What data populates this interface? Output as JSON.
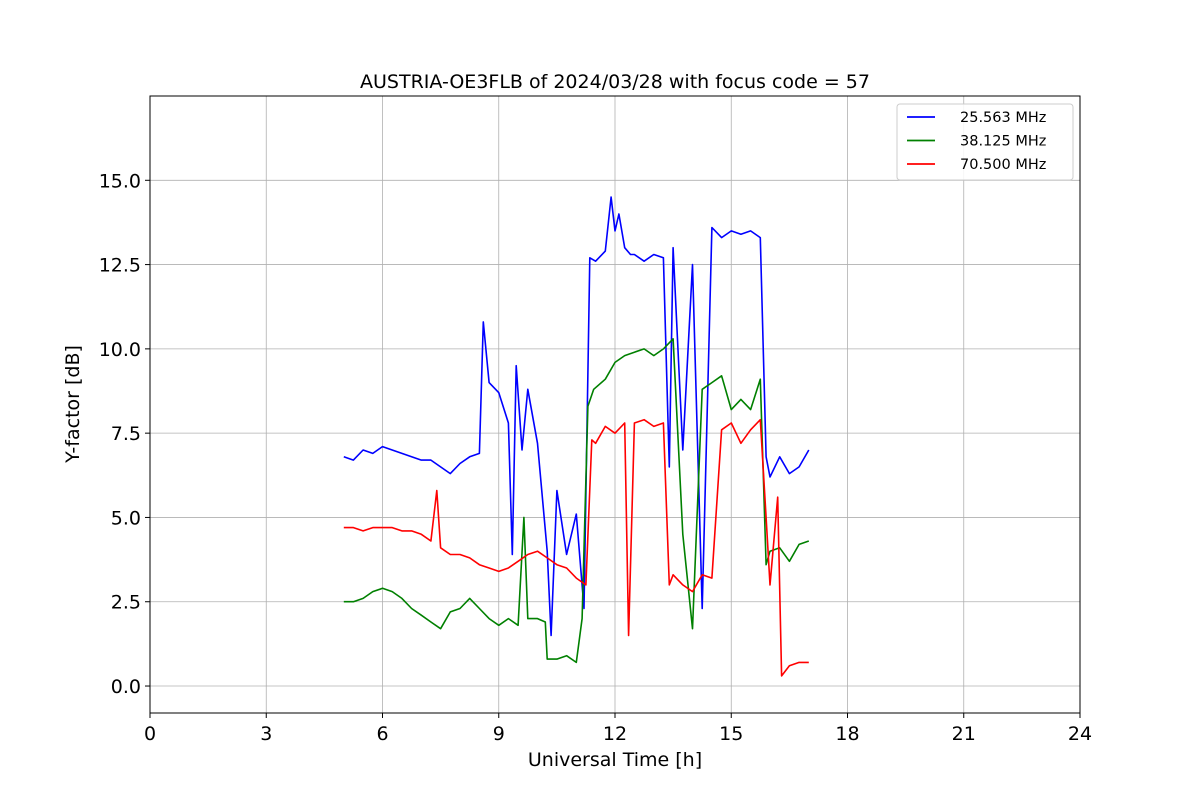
{
  "chart_data": {
    "type": "line",
    "title": "AUSTRIA-OE3FLB of 2024/03/28 with focus code = 57",
    "xlabel": "Universal Time [h]",
    "ylabel": "Y-factor [dB]",
    "xlim": [
      0,
      24
    ],
    "ylim": [
      -0.8,
      17.5
    ],
    "xticks": [
      0,
      3,
      6,
      9,
      12,
      15,
      18,
      21,
      24
    ],
    "xtick_labels": [
      "0",
      "3",
      "6",
      "9",
      "12",
      "15",
      "18",
      "21",
      "24"
    ],
    "yticks": [
      0.0,
      2.5,
      5.0,
      7.5,
      10.0,
      12.5,
      15.0
    ],
    "ytick_labels": [
      "0.0",
      "2.5",
      "5.0",
      "7.5",
      "10.0",
      "12.5",
      "15.0"
    ],
    "grid": true,
    "legend_position": "top-right",
    "colors": {
      "25.563 MHz": "#0000ff",
      "38.125 MHz": "#008000",
      "70.500 MHz": "#ff0000"
    },
    "series": [
      {
        "name": "25.563 MHz",
        "color": "#0000ff",
        "x": [
          5.0,
          5.25,
          5.5,
          5.75,
          6.0,
          6.25,
          6.5,
          6.75,
          7.0,
          7.25,
          7.5,
          7.75,
          8.0,
          8.25,
          8.5,
          8.6,
          8.75,
          9.0,
          9.25,
          9.35,
          9.45,
          9.6,
          9.75,
          10.0,
          10.25,
          10.35,
          10.5,
          10.75,
          11.0,
          11.2,
          11.35,
          11.5,
          11.75,
          11.9,
          12.0,
          12.1,
          12.25,
          12.4,
          12.5,
          12.75,
          13.0,
          13.25,
          13.4,
          13.5,
          13.75,
          14.0,
          14.25,
          14.5,
          14.75,
          15.0,
          15.25,
          15.5,
          15.75,
          15.9,
          16.0,
          16.25,
          16.5,
          16.75,
          17.0
        ],
        "y": [
          6.8,
          6.7,
          7.0,
          6.9,
          7.1,
          7.0,
          6.9,
          6.8,
          6.7,
          6.7,
          6.5,
          6.3,
          6.6,
          6.8,
          6.9,
          10.8,
          9.0,
          8.7,
          7.8,
          3.9,
          9.5,
          7.0,
          8.8,
          7.2,
          4.0,
          1.5,
          5.8,
          3.9,
          5.1,
          2.3,
          12.7,
          12.6,
          12.9,
          14.5,
          13.5,
          14.0,
          13.0,
          12.8,
          12.8,
          12.6,
          12.8,
          12.7,
          6.5,
          13.0,
          7.0,
          12.5,
          2.3,
          13.6,
          13.3,
          13.5,
          13.4,
          13.5,
          13.3,
          6.8,
          6.2,
          6.8,
          6.3,
          6.5,
          7.0
        ]
      },
      {
        "name": "38.125 MHz",
        "color": "#008000",
        "x": [
          5.0,
          5.25,
          5.5,
          5.75,
          6.0,
          6.25,
          6.5,
          6.75,
          7.0,
          7.25,
          7.5,
          7.75,
          8.0,
          8.25,
          8.5,
          8.75,
          9.0,
          9.25,
          9.5,
          9.65,
          9.75,
          10.0,
          10.2,
          10.25,
          10.5,
          10.75,
          11.0,
          11.15,
          11.3,
          11.45,
          11.75,
          12.0,
          12.25,
          12.5,
          12.75,
          13.0,
          13.25,
          13.5,
          13.75,
          14.0,
          14.25,
          14.5,
          14.75,
          15.0,
          15.25,
          15.5,
          15.75,
          15.9,
          16.0,
          16.25,
          16.5,
          16.75,
          17.0
        ],
        "y": [
          2.5,
          2.5,
          2.6,
          2.8,
          2.9,
          2.8,
          2.6,
          2.3,
          2.1,
          1.9,
          1.7,
          2.2,
          2.3,
          2.6,
          2.3,
          2.0,
          1.8,
          2.0,
          1.8,
          5.0,
          2.0,
          2.0,
          1.9,
          0.8,
          0.8,
          0.9,
          0.7,
          2.0,
          8.3,
          8.8,
          9.1,
          9.6,
          9.8,
          9.9,
          10.0,
          9.8,
          10.0,
          10.3,
          4.5,
          1.7,
          8.8,
          9.0,
          9.2,
          8.2,
          8.5,
          8.2,
          9.1,
          3.6,
          4.0,
          4.1,
          3.7,
          4.2,
          4.3
        ]
      },
      {
        "name": "70.500 MHz",
        "color": "#ff0000",
        "x": [
          5.0,
          5.25,
          5.5,
          5.75,
          6.0,
          6.25,
          6.5,
          6.75,
          7.0,
          7.25,
          7.4,
          7.5,
          7.75,
          8.0,
          8.25,
          8.5,
          8.75,
          9.0,
          9.25,
          9.5,
          9.75,
          10.0,
          10.25,
          10.5,
          10.75,
          11.0,
          11.25,
          11.4,
          11.5,
          11.75,
          12.0,
          12.25,
          12.35,
          12.5,
          12.75,
          13.0,
          13.25,
          13.4,
          13.5,
          13.75,
          14.0,
          14.25,
          14.5,
          14.75,
          15.0,
          15.25,
          15.5,
          15.75,
          15.9,
          16.0,
          16.2,
          16.3,
          16.5,
          16.75,
          17.0
        ],
        "y": [
          4.7,
          4.7,
          4.6,
          4.7,
          4.7,
          4.7,
          4.6,
          4.6,
          4.5,
          4.3,
          5.8,
          4.1,
          3.9,
          3.9,
          3.8,
          3.6,
          3.5,
          3.4,
          3.5,
          3.7,
          3.9,
          4.0,
          3.8,
          3.6,
          3.5,
          3.2,
          3.0,
          7.3,
          7.2,
          7.7,
          7.5,
          7.8,
          1.5,
          7.8,
          7.9,
          7.7,
          7.8,
          3.0,
          3.3,
          3.0,
          2.8,
          3.3,
          3.2,
          7.6,
          7.8,
          7.2,
          7.6,
          7.9,
          5.0,
          3.0,
          5.6,
          0.3,
          0.6,
          0.7,
          0.7
        ]
      }
    ]
  }
}
